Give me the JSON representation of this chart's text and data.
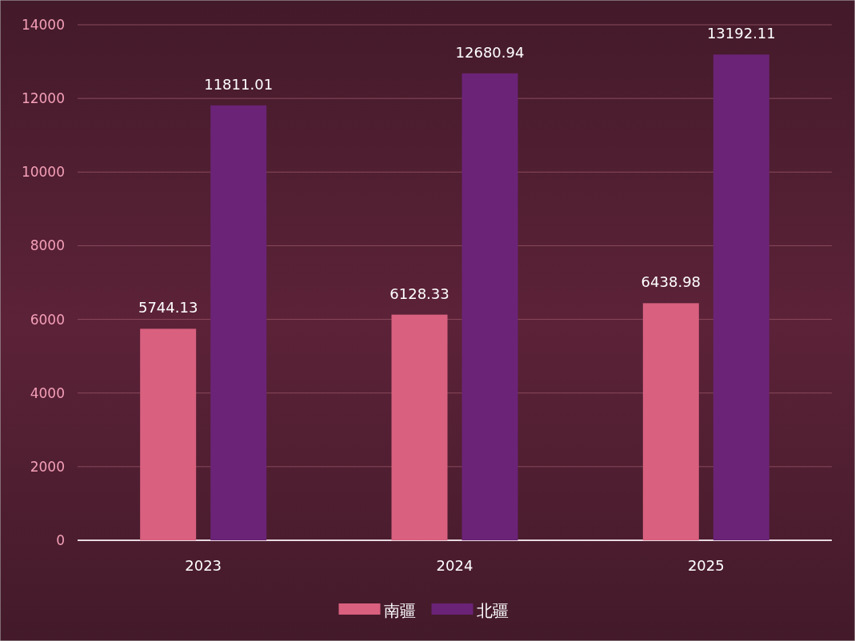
{
  "chart_data": {
    "type": "bar",
    "categories": [
      "2023",
      "2024",
      "2025"
    ],
    "series": [
      {
        "name": "南疆",
        "color": "#d9607f",
        "values": [
          5744.13,
          6128.33,
          6438.98
        ]
      },
      {
        "name": "北疆",
        "color": "#6b2377",
        "values": [
          11811.01,
          12680.94,
          13192.11
        ]
      }
    ],
    "ylim": [
      0,
      14000
    ],
    "yticks": [
      0,
      2000,
      4000,
      6000,
      8000,
      10000,
      12000,
      14000
    ],
    "grid": "y",
    "legend": "bottom",
    "data_labels": true
  }
}
